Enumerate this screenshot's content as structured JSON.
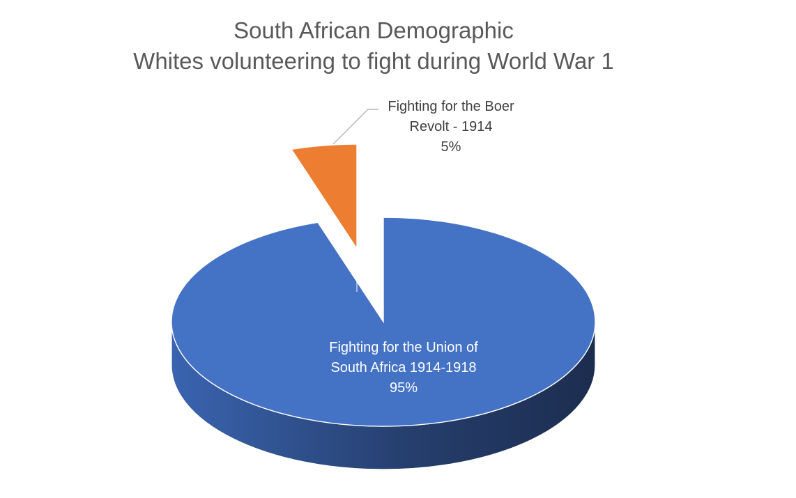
{
  "chart_data": {
    "type": "pie",
    "title": [
      "South African Demographic",
      "Whites volunteering to fight during World War 1"
    ],
    "legend": "none",
    "three_d": true,
    "slices": [
      {
        "label": [
          "Fighting for the Union of",
          "South Africa 1914-1918"
        ],
        "value": 95,
        "value_label": "95%",
        "color": "#4472c4",
        "side_color": "#2a4778"
      },
      {
        "label": [
          "Fighting for the Boer",
          "Revolt - 1914"
        ],
        "value": 5,
        "value_label": "5%",
        "color": "#ed7d31",
        "side_color": "#5a2e14",
        "exploded": true
      }
    ]
  }
}
